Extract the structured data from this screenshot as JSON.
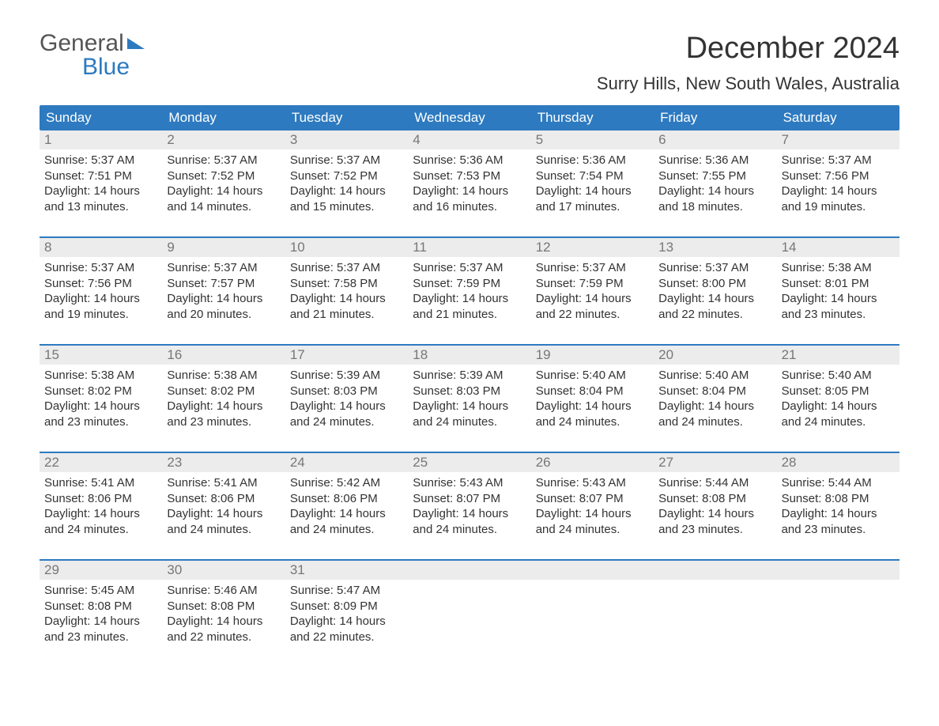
{
  "logo": {
    "line1": "General",
    "line2": "Blue"
  },
  "header": {
    "month_title": "December 2024",
    "location": "Surry Hills, New South Wales, Australia"
  },
  "colors": {
    "brand_blue": "#2d7ac0",
    "header_bg": "#2d7ac0",
    "header_text": "#ffffff",
    "daynum_bg": "#ececec",
    "daynum_text": "#777777",
    "body_text": "#333333",
    "divider": "#2d7ac0",
    "page_bg": "#ffffff"
  },
  "typography": {
    "month_title_fontsize": 38,
    "location_fontsize": 22,
    "dow_fontsize": 17,
    "daynum_fontsize": 17,
    "body_fontsize": 15,
    "font_family": "Arial"
  },
  "calendar": {
    "days_of_week": [
      "Sunday",
      "Monday",
      "Tuesday",
      "Wednesday",
      "Thursday",
      "Friday",
      "Saturday"
    ],
    "labels": {
      "sunrise": "Sunrise:",
      "sunset": "Sunset:",
      "daylight": "Daylight:"
    },
    "weeks": [
      [
        {
          "num": "1",
          "sunrise": "5:37 AM",
          "sunset": "7:51 PM",
          "daylight": "14 hours and 13 minutes."
        },
        {
          "num": "2",
          "sunrise": "5:37 AM",
          "sunset": "7:52 PM",
          "daylight": "14 hours and 14 minutes."
        },
        {
          "num": "3",
          "sunrise": "5:37 AM",
          "sunset": "7:52 PM",
          "daylight": "14 hours and 15 minutes."
        },
        {
          "num": "4",
          "sunrise": "5:36 AM",
          "sunset": "7:53 PM",
          "daylight": "14 hours and 16 minutes."
        },
        {
          "num": "5",
          "sunrise": "5:36 AM",
          "sunset": "7:54 PM",
          "daylight": "14 hours and 17 minutes."
        },
        {
          "num": "6",
          "sunrise": "5:36 AM",
          "sunset": "7:55 PM",
          "daylight": "14 hours and 18 minutes."
        },
        {
          "num": "7",
          "sunrise": "5:37 AM",
          "sunset": "7:56 PM",
          "daylight": "14 hours and 19 minutes."
        }
      ],
      [
        {
          "num": "8",
          "sunrise": "5:37 AM",
          "sunset": "7:56 PM",
          "daylight": "14 hours and 19 minutes."
        },
        {
          "num": "9",
          "sunrise": "5:37 AM",
          "sunset": "7:57 PM",
          "daylight": "14 hours and 20 minutes."
        },
        {
          "num": "10",
          "sunrise": "5:37 AM",
          "sunset": "7:58 PM",
          "daylight": "14 hours and 21 minutes."
        },
        {
          "num": "11",
          "sunrise": "5:37 AM",
          "sunset": "7:59 PM",
          "daylight": "14 hours and 21 minutes."
        },
        {
          "num": "12",
          "sunrise": "5:37 AM",
          "sunset": "7:59 PM",
          "daylight": "14 hours and 22 minutes."
        },
        {
          "num": "13",
          "sunrise": "5:37 AM",
          "sunset": "8:00 PM",
          "daylight": "14 hours and 22 minutes."
        },
        {
          "num": "14",
          "sunrise": "5:38 AM",
          "sunset": "8:01 PM",
          "daylight": "14 hours and 23 minutes."
        }
      ],
      [
        {
          "num": "15",
          "sunrise": "5:38 AM",
          "sunset": "8:02 PM",
          "daylight": "14 hours and 23 minutes."
        },
        {
          "num": "16",
          "sunrise": "5:38 AM",
          "sunset": "8:02 PM",
          "daylight": "14 hours and 23 minutes."
        },
        {
          "num": "17",
          "sunrise": "5:39 AM",
          "sunset": "8:03 PM",
          "daylight": "14 hours and 24 minutes."
        },
        {
          "num": "18",
          "sunrise": "5:39 AM",
          "sunset": "8:03 PM",
          "daylight": "14 hours and 24 minutes."
        },
        {
          "num": "19",
          "sunrise": "5:40 AM",
          "sunset": "8:04 PM",
          "daylight": "14 hours and 24 minutes."
        },
        {
          "num": "20",
          "sunrise": "5:40 AM",
          "sunset": "8:04 PM",
          "daylight": "14 hours and 24 minutes."
        },
        {
          "num": "21",
          "sunrise": "5:40 AM",
          "sunset": "8:05 PM",
          "daylight": "14 hours and 24 minutes."
        }
      ],
      [
        {
          "num": "22",
          "sunrise": "5:41 AM",
          "sunset": "8:06 PM",
          "daylight": "14 hours and 24 minutes."
        },
        {
          "num": "23",
          "sunrise": "5:41 AM",
          "sunset": "8:06 PM",
          "daylight": "14 hours and 24 minutes."
        },
        {
          "num": "24",
          "sunrise": "5:42 AM",
          "sunset": "8:06 PM",
          "daylight": "14 hours and 24 minutes."
        },
        {
          "num": "25",
          "sunrise": "5:43 AM",
          "sunset": "8:07 PM",
          "daylight": "14 hours and 24 minutes."
        },
        {
          "num": "26",
          "sunrise": "5:43 AM",
          "sunset": "8:07 PM",
          "daylight": "14 hours and 24 minutes."
        },
        {
          "num": "27",
          "sunrise": "5:44 AM",
          "sunset": "8:08 PM",
          "daylight": "14 hours and 23 minutes."
        },
        {
          "num": "28",
          "sunrise": "5:44 AM",
          "sunset": "8:08 PM",
          "daylight": "14 hours and 23 minutes."
        }
      ],
      [
        {
          "num": "29",
          "sunrise": "5:45 AM",
          "sunset": "8:08 PM",
          "daylight": "14 hours and 23 minutes."
        },
        {
          "num": "30",
          "sunrise": "5:46 AM",
          "sunset": "8:08 PM",
          "daylight": "14 hours and 22 minutes."
        },
        {
          "num": "31",
          "sunrise": "5:47 AM",
          "sunset": "8:09 PM",
          "daylight": "14 hours and 22 minutes."
        },
        null,
        null,
        null,
        null
      ]
    ]
  }
}
